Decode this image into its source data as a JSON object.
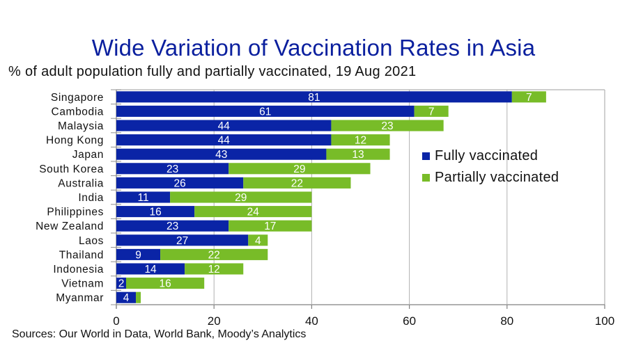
{
  "title": "Wide Variation of Vaccination Rates in Asia",
  "subtitle": "% of adult population fully and partially vaccinated, 19 Aug 2021",
  "source": "Sources: Our World in Data, World Bank, Moody’s Analytics",
  "colors": {
    "fully": "#0a24a6",
    "partially": "#78bc28",
    "grid": "#b0b0b0",
    "title": "#0a1f9e"
  },
  "chart_data": {
    "type": "bar",
    "orientation": "horizontal",
    "stacked": true,
    "title": "Wide Variation of Vaccination Rates in Asia",
    "subtitle": "% of adult population fully and partially vaccinated, 19 Aug 2021",
    "xlabel": "",
    "ylabel": "",
    "xlim": [
      0,
      100
    ],
    "xticks": [
      0,
      20,
      40,
      60,
      80,
      100
    ],
    "grid": "vertical",
    "legend_position": "right",
    "categories": [
      "Singapore",
      "Cambodia",
      "Malaysia",
      "Hong Kong",
      "Japan",
      "South Korea",
      "Australia",
      "India",
      "Philippines",
      "New Zealand",
      "Laos",
      "Thailand",
      "Indonesia",
      "Vietnam",
      "Myanmar"
    ],
    "series": [
      {
        "name": "Fully vaccinated",
        "values": [
          81,
          61,
          44,
          44,
          43,
          23,
          26,
          11,
          16,
          23,
          27,
          9,
          14,
          2,
          4
        ]
      },
      {
        "name": "Partially vaccinated",
        "values": [
          7,
          7,
          23,
          12,
          13,
          29,
          22,
          29,
          24,
          17,
          4,
          22,
          12,
          16,
          1
        ]
      }
    ]
  }
}
